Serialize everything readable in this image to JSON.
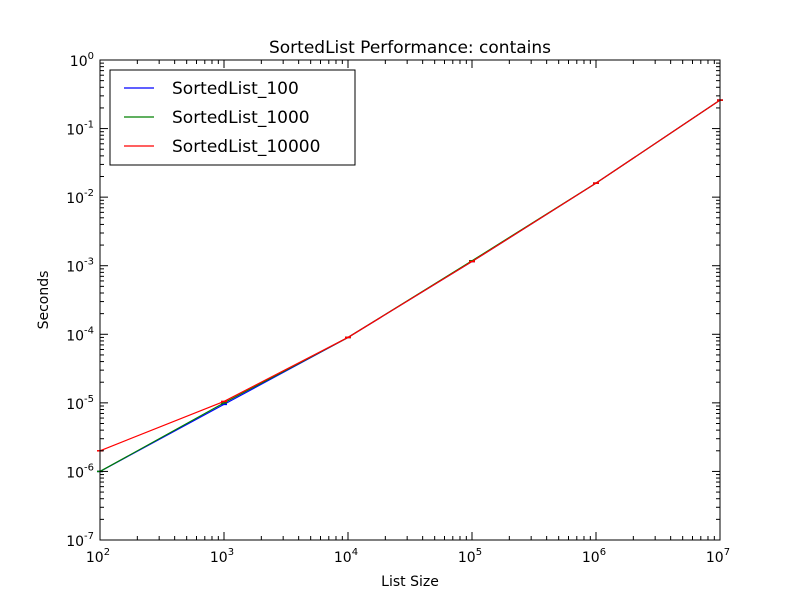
{
  "chart_data": {
    "type": "line",
    "title": "SortedList Performance: contains",
    "xlabel": "List Size",
    "ylabel": "Seconds",
    "xscale": "log",
    "yscale": "log",
    "xlim": [
      100,
      10000000
    ],
    "ylim": [
      1e-07,
      1
    ],
    "grid": false,
    "legend_position": "top-left",
    "x_ticks": [
      {
        "base": "10",
        "exp": "2"
      },
      {
        "base": "10",
        "exp": "3"
      },
      {
        "base": "10",
        "exp": "4"
      },
      {
        "base": "10",
        "exp": "5"
      },
      {
        "base": "10",
        "exp": "6"
      },
      {
        "base": "10",
        "exp": "7"
      }
    ],
    "y_ticks": [
      {
        "base": "10",
        "exp": "-7"
      },
      {
        "base": "10",
        "exp": "-6"
      },
      {
        "base": "10",
        "exp": "-5"
      },
      {
        "base": "10",
        "exp": "-4"
      },
      {
        "base": "10",
        "exp": "-3"
      },
      {
        "base": "10",
        "exp": "-2"
      },
      {
        "base": "10",
        "exp": "-1"
      },
      {
        "base": "10",
        "exp": "0"
      }
    ],
    "x": [
      100,
      1000,
      10000,
      100000,
      1000000,
      10000000
    ],
    "series": [
      {
        "name": "SortedList_100",
        "color": "#0000ff",
        "values": [
          1e-06,
          9.5e-06,
          9e-05,
          0.00115,
          0.016,
          0.26
        ]
      },
      {
        "name": "SortedList_1000",
        "color": "#008000",
        "values": [
          1e-06,
          1e-05,
          9e-05,
          0.00118,
          0.016,
          0.26
        ]
      },
      {
        "name": "SortedList_10000",
        "color": "#ff0000",
        "values": [
          2e-06,
          1.05e-05,
          9e-05,
          0.00115,
          0.016,
          0.26
        ]
      }
    ]
  }
}
